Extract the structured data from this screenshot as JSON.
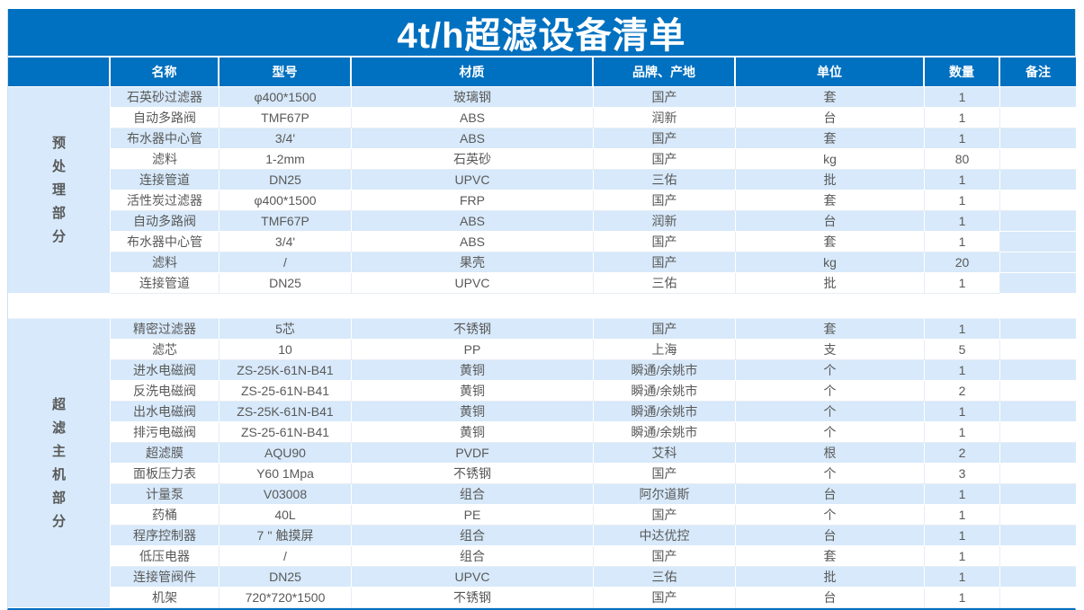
{
  "title": "4t/h超滤设备清单",
  "columns": [
    "",
    "名称",
    "型号",
    "材质",
    "品牌、产地",
    "单位",
    "数量",
    "备注"
  ],
  "sections": [
    {
      "label": "预处理部分",
      "rows": [
        [
          "石英砂过滤器",
          "φ400*1500",
          "玻璃钢",
          "国产",
          "套",
          1,
          ""
        ],
        [
          "自动多路阀",
          "TMF67P",
          "ABS",
          "润新",
          "台",
          1,
          ""
        ],
        [
          "布水器中心管",
          "3/4'",
          "ABS",
          "国产",
          "套",
          1,
          ""
        ],
        [
          "滤料",
          "1-2mm",
          "石英砂",
          "国产",
          "kg",
          80,
          ""
        ],
        [
          "连接管道",
          "DN25",
          "UPVC",
          "三佑",
          "批",
          1,
          ""
        ],
        [
          "活性炭过滤器",
          "φ400*1500",
          "FRP",
          "国产",
          "套",
          1,
          ""
        ],
        [
          "自动多路阀",
          "TMF67P",
          "ABS",
          "润新",
          "台",
          1,
          ""
        ],
        [
          "布水器中心管",
          "3/4'",
          "ABS",
          "国产",
          "套",
          1,
          ""
        ],
        [
          "滤料",
          "/",
          "果壳",
          "国产",
          "kg",
          20,
          ""
        ],
        [
          "连接管道",
          "DN25",
          "UPVC",
          "三佑",
          "批",
          1,
          ""
        ]
      ]
    },
    {
      "label": "超滤主机部分",
      "rows": [
        [
          "精密过滤器",
          "5芯",
          "不锈钢",
          "国产",
          "套",
          1,
          ""
        ],
        [
          "滤芯",
          "10",
          "PP",
          "上海",
          "支",
          5,
          ""
        ],
        [
          "进水电磁阀",
          "ZS-25K-61N-B41",
          "黄铜",
          "瞬通/余姚市",
          "个",
          1,
          ""
        ],
        [
          "反洗电磁阀",
          "ZS-25-61N-B41",
          "黄铜",
          "瞬通/余姚市",
          "个",
          2,
          ""
        ],
        [
          "出水电磁阀",
          "ZS-25K-61N-B41",
          "黄铜",
          "瞬通/余姚市",
          "个",
          1,
          ""
        ],
        [
          "排污电磁阀",
          "ZS-25-61N-B41",
          "黄铜",
          "瞬通/余姚市",
          "个",
          1,
          ""
        ],
        [
          "超滤膜",
          "AQU90",
          "PVDF",
          "艾科",
          "根",
          2,
          ""
        ],
        [
          "面板压力表",
          "Y60 1Mpa",
          "不锈钢",
          "国产",
          "个",
          3,
          ""
        ],
        [
          "计量泵",
          "V03008",
          "组合",
          "阿尔道斯",
          "台",
          1,
          ""
        ],
        [
          "药桶",
          "40L",
          "PE",
          "国产",
          "个",
          1,
          ""
        ],
        [
          "程序控制器",
          "7 '' 触摸屏",
          "组合",
          "中达优控",
          "台",
          1,
          ""
        ],
        [
          "低压电器",
          "/",
          "组合",
          "国产",
          "套",
          1,
          ""
        ],
        [
          "连接管阀件",
          "DN25",
          "UPVC",
          "三佑",
          "批",
          1,
          ""
        ],
        [
          "机架",
          "720*720*1500",
          "不锈钢",
          "国产",
          "台",
          1,
          ""
        ]
      ]
    }
  ],
  "colors": {
    "header_blue": "#0070c0",
    "band_blue": "#d7e9fa",
    "text_gray": "#595959"
  }
}
